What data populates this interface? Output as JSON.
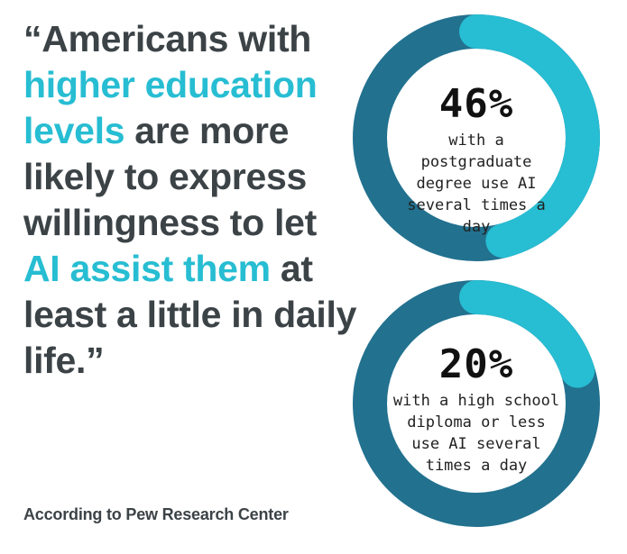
{
  "quote": {
    "parts": [
      {
        "text": "“Americans with ",
        "highlight": false
      },
      {
        "text": "higher education levels",
        "highlight": true
      },
      {
        "text": " are more likely to express willingness to let ",
        "highlight": false
      },
      {
        "text": "AI assist them",
        "highlight": true
      },
      {
        "text": " at least a little in daily life.”",
        "highlight": false
      }
    ]
  },
  "source": "According to Pew Research Center",
  "colors": {
    "text": "#3c4347",
    "highlight": "#27bdd2",
    "ring_primary": "#22718f",
    "ring_accent": "#27bdd2"
  },
  "chart_data": [
    {
      "type": "pie",
      "style": "donut",
      "value_label": "46%",
      "value": 46,
      "description": "with a postgraduate degree use AI several times a day"
    },
    {
      "type": "pie",
      "style": "donut",
      "value_label": "20%",
      "value": 20,
      "description": "with a high school diploma or less use AI several times a day"
    }
  ]
}
